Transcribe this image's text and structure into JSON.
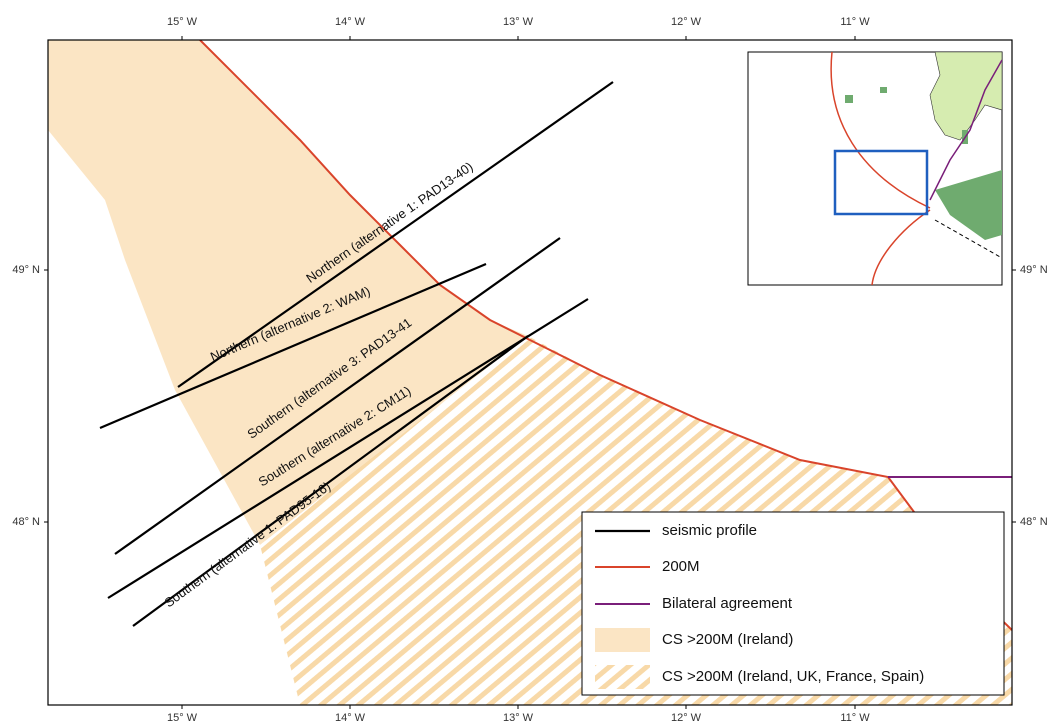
{
  "map": {
    "x_labels": [
      "15° W",
      "14° W",
      "13° W",
      "12° W",
      "11° W"
    ],
    "y_labels": [
      "49° N",
      "48° N"
    ],
    "profiles": [
      "Northern (alternative 1: PAD13-40)",
      "Northern (alternative 2: WAM)",
      "Southern (alternative 3: PAD13-41",
      "Southern (alternative 2: CM11)",
      "Southern (alternative 1: PAD95-16)"
    ],
    "legend": [
      "seismic profile",
      "200M",
      "Bilateral agreement",
      "CS >200M (Ireland)",
      "CS >200M (Ireland, UK, France, Spain)"
    ]
  }
}
